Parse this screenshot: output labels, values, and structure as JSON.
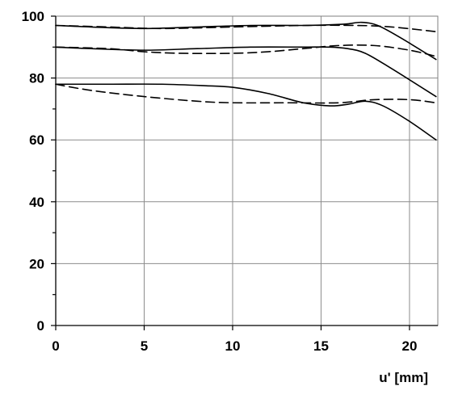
{
  "chart_data": {
    "type": "line",
    "title": "",
    "xlabel": "u' [mm]",
    "ylabel": "",
    "xlim": [
      0,
      21.6
    ],
    "ylim": [
      0,
      100
    ],
    "x_ticks": [
      0,
      5,
      10,
      15,
      20
    ],
    "y_ticks": [
      0,
      20,
      40,
      60,
      80,
      100
    ],
    "grid": true,
    "legend": "none",
    "line_color": "#000000",
    "series": [
      {
        "style": "solid",
        "x": [
          0,
          2,
          5,
          8,
          11,
          14,
          15.5,
          16.5,
          17.3,
          18.2,
          19.5,
          21.5
        ],
        "y": [
          97,
          96.5,
          96,
          96.5,
          97,
          97,
          97.2,
          97.5,
          98,
          97,
          93,
          86
        ]
      },
      {
        "style": "dashed",
        "x": [
          0,
          3,
          6,
          10,
          14,
          17,
          19,
          21.5
        ],
        "y": [
          97,
          96.5,
          96,
          96.5,
          97,
          97,
          96.5,
          95
        ]
      },
      {
        "style": "solid",
        "x": [
          0,
          2,
          5,
          8,
          11,
          14,
          15.5,
          16.5,
          17.5,
          19,
          21.5
        ],
        "y": [
          90,
          89.5,
          89,
          89.5,
          90,
          90,
          90,
          89.5,
          88,
          83,
          74
        ]
      },
      {
        "style": "dashed",
        "x": [
          0,
          3,
          5,
          7,
          10,
          12,
          14,
          16,
          18,
          20,
          21.5
        ],
        "y": [
          90,
          89.5,
          88.5,
          88,
          88,
          88.5,
          89.5,
          90.5,
          90.5,
          89,
          87
        ]
      },
      {
        "style": "solid",
        "x": [
          0,
          3,
          6,
          8.5,
          10,
          12,
          14,
          15.5,
          16.5,
          17.5,
          18.5,
          20,
          21.5
        ],
        "y": [
          78,
          78,
          78,
          77.5,
          77,
          75,
          72,
          71,
          71.5,
          72.5,
          71,
          66,
          60
        ]
      },
      {
        "style": "dashed",
        "x": [
          0,
          2,
          5,
          8,
          10,
          13,
          16,
          18,
          20,
          21.5
        ],
        "y": [
          78,
          76,
          74,
          72.5,
          72,
          72,
          72,
          73,
          73,
          72
        ]
      }
    ]
  }
}
